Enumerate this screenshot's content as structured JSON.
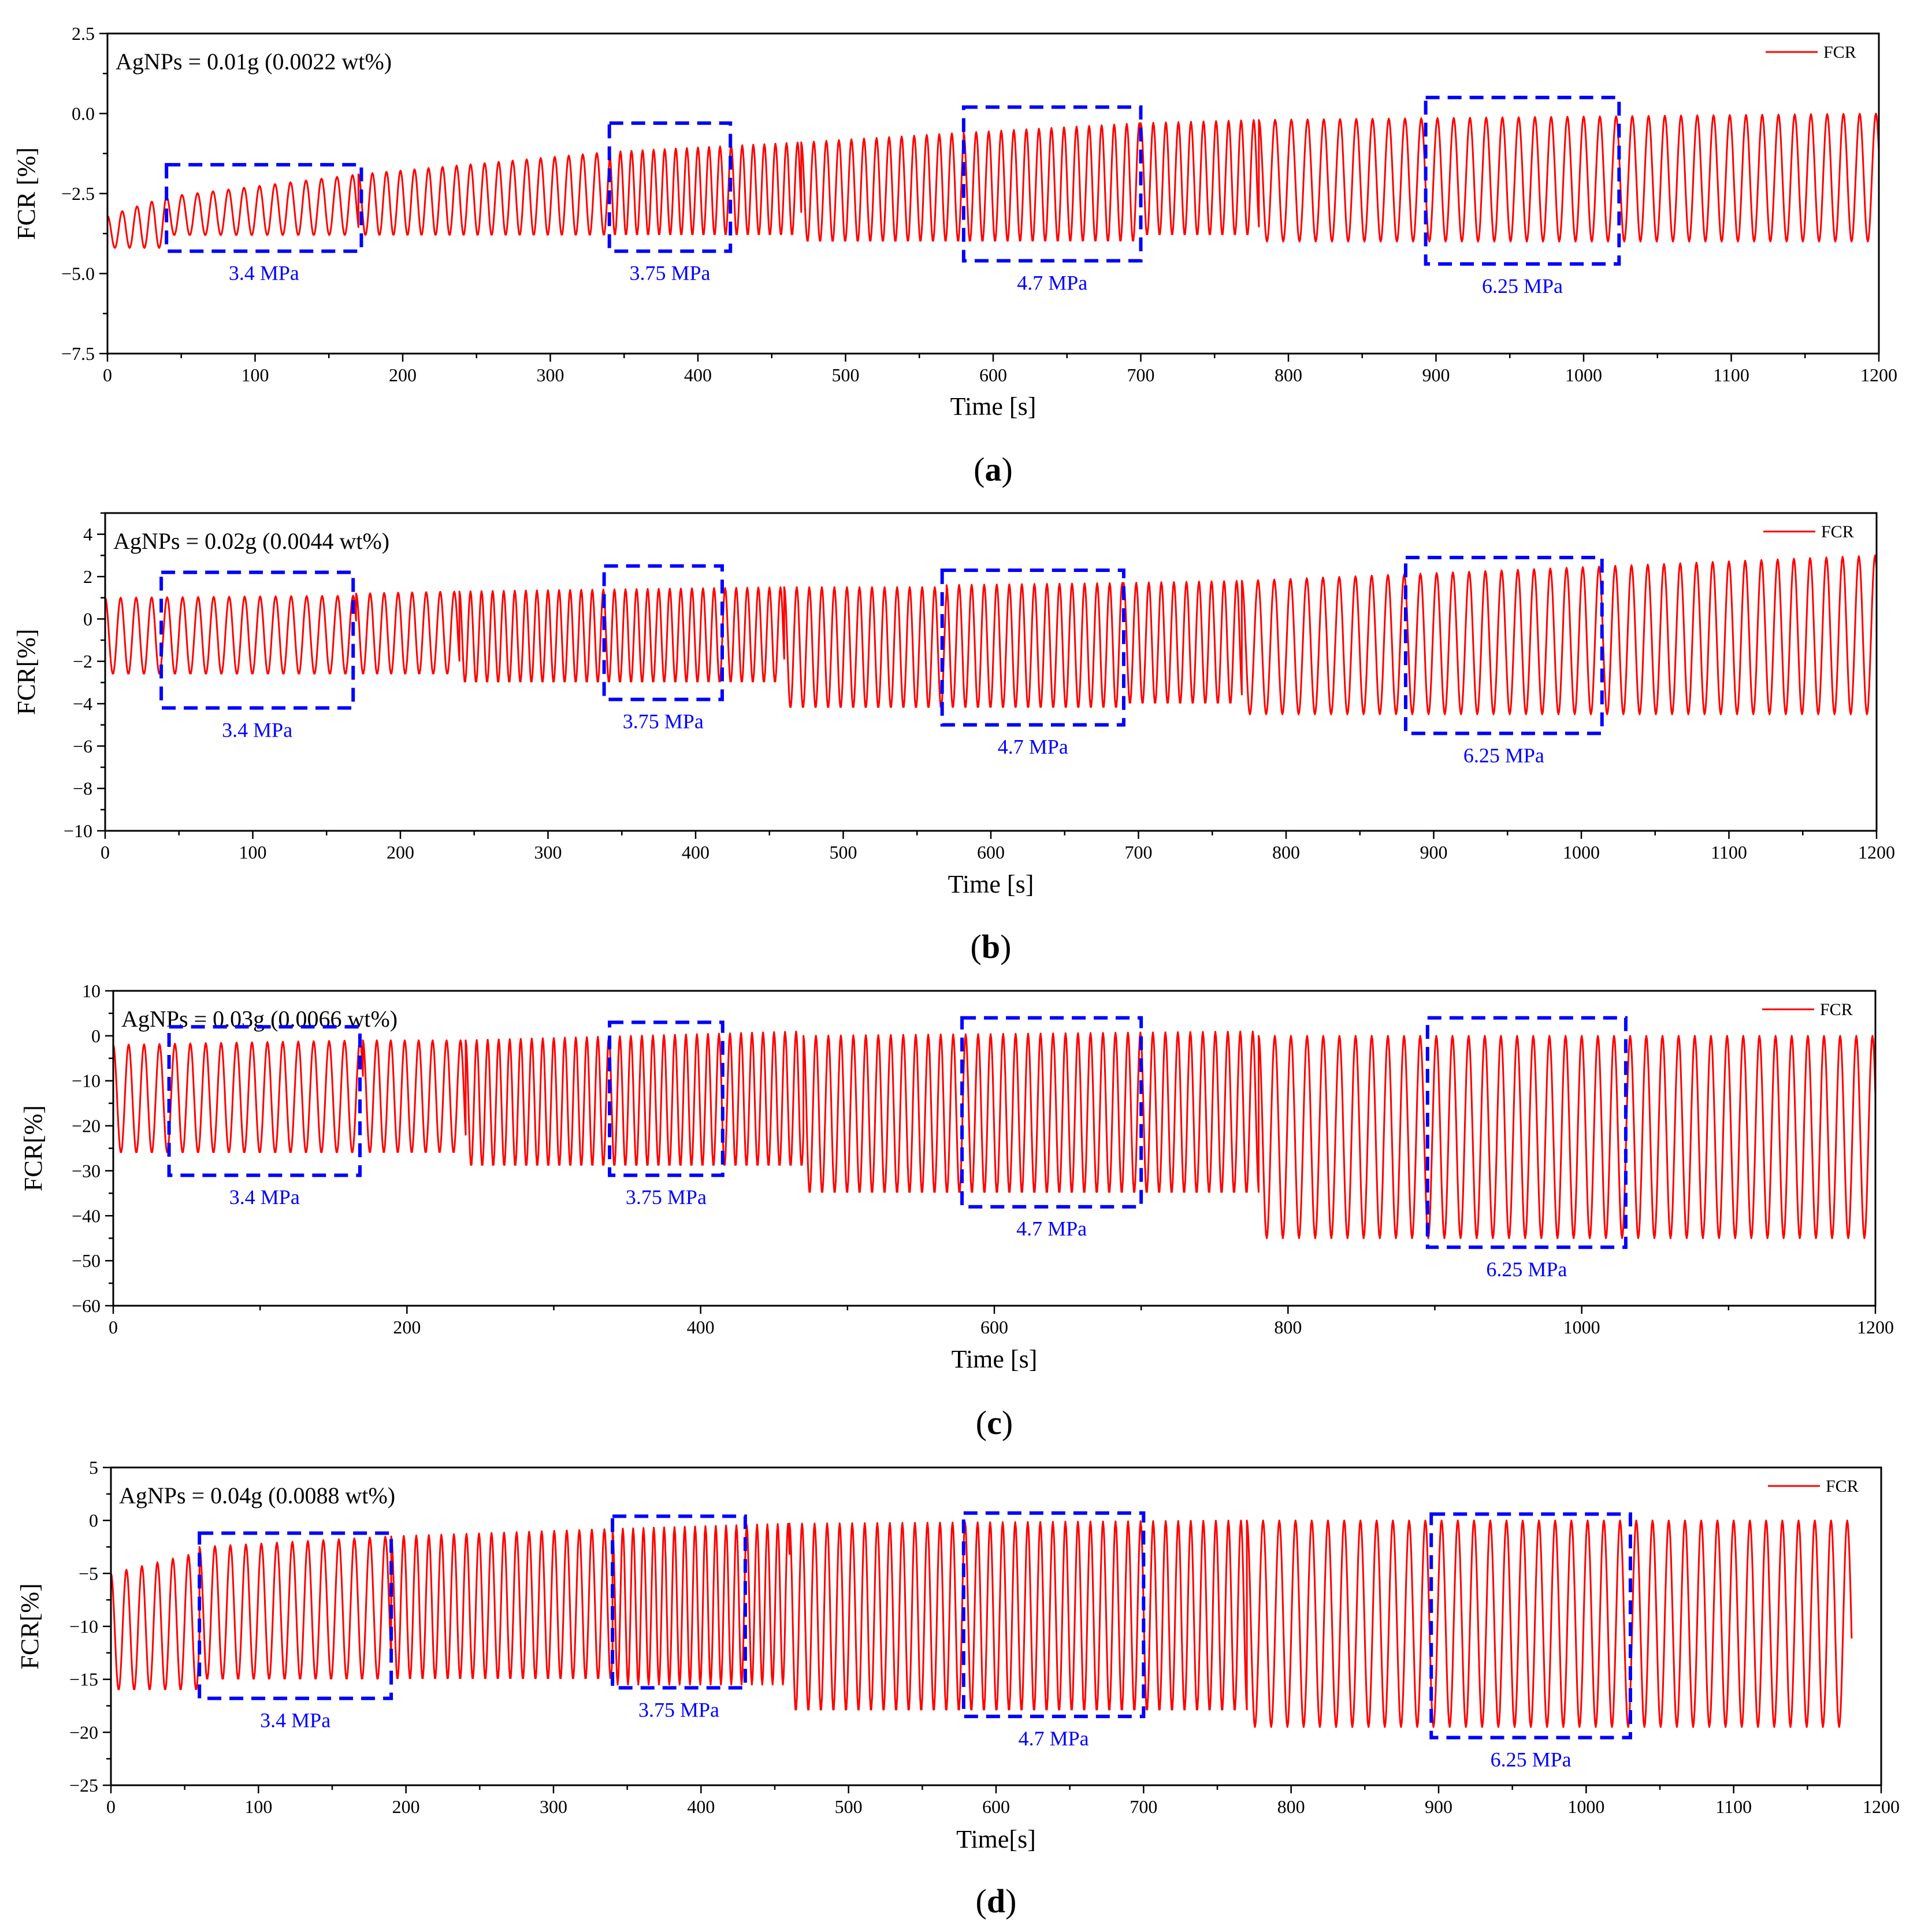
{
  "figure": {
    "series_color": "#ff0000",
    "box_color": "#0000ff"
  },
  "chart_data": [
    {
      "id": "a",
      "type": "line",
      "label": "a",
      "annotation": "AgNPs = 0.01g (0.0022 wt%)",
      "xlabel": "Time [s]",
      "ylabel": "FCR [%]",
      "xlim": [
        0,
        1200
      ],
      "ylim": [
        -7.5,
        2.5
      ],
      "xticks": [
        0,
        100,
        200,
        300,
        400,
        500,
        600,
        700,
        800,
        900,
        1000,
        1100,
        1200
      ],
      "yticks": [
        "2.5",
        "0.0",
        "-2.5",
        "-5.0",
        "-7.5"
      ],
      "legend": "FCR",
      "series": [
        {
          "name": "FCR",
          "description": "periodic loading cycles",
          "segments": [
            {
              "t_start": 0,
              "t_end": 40,
              "period": 10,
              "max_start": -3.2,
              "max_end": -2.6,
              "min": -4.2
            },
            {
              "t_start": 40,
              "t_end": 170,
              "period": 10.5,
              "max_start": -2.6,
              "max_end": -1.9,
              "min": -3.8
            },
            {
              "t_start": 170,
              "t_end": 340,
              "period": 9.5,
              "max_start": -1.9,
              "max_end": -1.2,
              "min": -3.8
            },
            {
              "t_start": 340,
              "t_end": 470,
              "period": 7.5,
              "max_start": -1.2,
              "max_end": -0.9,
              "min": -3.8
            },
            {
              "t_start": 470,
              "t_end": 580,
              "period": 8.5,
              "max_start": -0.9,
              "max_end": -0.6,
              "min": -4.0
            },
            {
              "t_start": 580,
              "t_end": 700,
              "period": 8.5,
              "max_start": -0.6,
              "max_end": -0.3,
              "min": -4.0
            },
            {
              "t_start": 700,
              "t_end": 780,
              "period": 8.5,
              "max_start": -0.3,
              "max_end": -0.2,
              "min": -3.8
            },
            {
              "t_start": 780,
              "t_end": 1200,
              "period": 11,
              "max_start": -0.2,
              "max_end": 0.0,
              "min": -4.0
            }
          ]
        }
      ],
      "regions": [
        {
          "label": "3.4 MPa",
          "t_start": 40,
          "t_end": 172,
          "y_low": -4.3,
          "y_high": -1.6
        },
        {
          "label": "3.75  MPa",
          "t_start": 340,
          "t_end": 422,
          "y_low": -4.3,
          "y_high": -0.3
        },
        {
          "label": "4.7  MPa",
          "t_start": 580,
          "t_end": 700,
          "y_low": -4.6,
          "y_high": 0.2
        },
        {
          "label": "6.25  MPa",
          "t_start": 893,
          "t_end": 1024,
          "y_low": -4.7,
          "y_high": 0.5
        }
      ]
    },
    {
      "id": "b",
      "type": "line",
      "label": "b",
      "annotation": "AgNPs = 0.02g (0.0044 wt%)",
      "xlabel": "Time [s]",
      "ylabel": "FCR[%]",
      "xlim": [
        0,
        1200
      ],
      "ylim": [
        -10,
        5
      ],
      "xticks": [
        0,
        100,
        200,
        300,
        400,
        500,
        600,
        700,
        800,
        900,
        1000,
        1100,
        1200
      ],
      "yticks": [
        "4",
        "2",
        "0",
        "-2",
        "-4",
        "-6",
        "-8",
        "-10"
      ],
      "legend": "FCR",
      "series": [
        {
          "name": "FCR",
          "description": "periodic loading cycles",
          "segments": [
            {
              "t_start": 0,
              "t_end": 170,
              "period": 10.5,
              "max_start": 1.0,
              "max_end": 1.1,
              "min": -2.6
            },
            {
              "t_start": 170,
              "t_end": 240,
              "period": 9.5,
              "max_start": 1.2,
              "max_end": 1.3,
              "min": -2.6
            },
            {
              "t_start": 240,
              "t_end": 460,
              "period": 7.5,
              "max_start": 1.3,
              "max_end": 1.5,
              "min": -3.0
            },
            {
              "t_start": 460,
              "t_end": 570,
              "period": 8.5,
              "max_start": 1.5,
              "max_end": 1.5,
              "min": -4.2
            },
            {
              "t_start": 570,
              "t_end": 690,
              "period": 8.5,
              "max_start": 1.6,
              "max_end": 1.7,
              "min": -4.2
            },
            {
              "t_start": 690,
              "t_end": 770,
              "period": 8.5,
              "max_start": 1.7,
              "max_end": 1.8,
              "min": -4.0
            },
            {
              "t_start": 770,
              "t_end": 1200,
              "period": 11,
              "max_start": 1.8,
              "max_end": 3.0,
              "min": -4.5
            }
          ]
        }
      ],
      "regions": [
        {
          "label": "3.4 MPa",
          "t_start": 38,
          "t_end": 168,
          "y_low": -4.2,
          "y_high": 2.2
        },
        {
          "label": "3.75 MPa",
          "t_start": 338,
          "t_end": 418,
          "y_low": -3.8,
          "y_high": 2.5
        },
        {
          "label": "4.7 MPa",
          "t_start": 567,
          "t_end": 690,
          "y_low": -5.0,
          "y_high": 2.3
        },
        {
          "label": "6.25 MPa",
          "t_start": 881,
          "t_end": 1014,
          "y_low": -5.4,
          "y_high": 2.9
        }
      ]
    },
    {
      "id": "c",
      "type": "line",
      "label": "c",
      "annotation": "AgNPs = 0.03g (0.0066 wt%)",
      "xlabel": "Time [s]",
      "ylabel": "FCR[%]",
      "xlim": [
        0,
        1200
      ],
      "ylim": [
        -60,
        10
      ],
      "xticks": [
        0,
        200,
        400,
        600,
        800,
        1000,
        1200
      ],
      "yticks": [
        "10",
        "0",
        "-10",
        "-20",
        "-30",
        "-40",
        "-50",
        "-60"
      ],
      "legend": "FCR",
      "series": [
        {
          "name": "FCR",
          "description": "periodic loading cycles",
          "segments": [
            {
              "t_start": 0,
              "t_end": 170,
              "period": 10.5,
              "max_start": -2,
              "max_end": -1,
              "min": -26
            },
            {
              "t_start": 170,
              "t_end": 240,
              "period": 9.5,
              "max_start": -1,
              "max_end": -1,
              "min": -26
            },
            {
              "t_start": 240,
              "t_end": 470,
              "period": 7.5,
              "max_start": -1,
              "max_end": 1,
              "min": -29
            },
            {
              "t_start": 470,
              "t_end": 780,
              "period": 8.5,
              "max_start": 0,
              "max_end": 1,
              "min": -35
            },
            {
              "t_start": 780,
              "t_end": 1200,
              "period": 11,
              "max_start": 0,
              "max_end": 0,
              "min": -45
            }
          ]
        }
      ],
      "regions": [
        {
          "label": "3.4 MPa",
          "t_start": 38,
          "t_end": 168,
          "y_low": -31,
          "y_high": 2
        },
        {
          "label": "3.75  MPa",
          "t_start": 338,
          "t_end": 415,
          "y_low": -31,
          "y_high": 3
        },
        {
          "label": "4.7  MPa",
          "t_start": 578,
          "t_end": 700,
          "y_low": -38,
          "y_high": 4
        },
        {
          "label": "6.25  MPa",
          "t_start": 895,
          "t_end": 1030,
          "y_low": -47,
          "y_high": 4
        }
      ]
    },
    {
      "id": "d",
      "type": "line",
      "label": "d",
      "annotation": "AgNPs = 0.04g (0.0088 wt%)",
      "xlabel": "Time[s]",
      "ylabel": "FCR[%]",
      "xlim": [
        0,
        1200
      ],
      "ylim": [
        -25,
        5
      ],
      "xticks": [
        0,
        100,
        200,
        300,
        400,
        500,
        600,
        700,
        800,
        900,
        1000,
        1100,
        1200
      ],
      "yticks": [
        "5",
        "0",
        "-5",
        "-10",
        "-15",
        "-20",
        "-25"
      ],
      "legend": "FCR",
      "series": [
        {
          "name": "FCR",
          "description": "periodic loading cycles",
          "segments": [
            {
              "t_start": 0,
              "t_end": 60,
              "period": 10.5,
              "max_start": -5,
              "max_end": -3,
              "min": -16
            },
            {
              "t_start": 60,
              "t_end": 190,
              "period": 10.5,
              "max_start": -2.5,
              "max_end": -1.5,
              "min": -15
            },
            {
              "t_start": 190,
              "t_end": 340,
              "period": 8.5,
              "max_start": -1.5,
              "max_end": -0.8,
              "min": -15
            },
            {
              "t_start": 340,
              "t_end": 460,
              "period": 7,
              "max_start": -0.8,
              "max_end": -0.3,
              "min": -15.5
            },
            {
              "t_start": 460,
              "t_end": 770,
              "period": 8.5,
              "max_start": -0.3,
              "max_end": 0,
              "min": -18
            },
            {
              "t_start": 770,
              "t_end": 1180,
              "period": 11,
              "max_start": 0,
              "max_end": 0,
              "min": -19.5
            }
          ]
        }
      ],
      "regions": [
        {
          "label": "3.4  MPa",
          "t_start": 60,
          "t_end": 190,
          "y_low": -16.8,
          "y_high": -1.2
        },
        {
          "label": "3.75  MPa",
          "t_start": 340,
          "t_end": 430,
          "y_low": -15.8,
          "y_high": 0.4
        },
        {
          "label": "4.7  MPa",
          "t_start": 578,
          "t_end": 700,
          "y_low": -18.5,
          "y_high": 0.7
        },
        {
          "label": "6.25  MPa",
          "t_start": 895,
          "t_end": 1030,
          "y_low": -20.5,
          "y_high": 0.6
        }
      ]
    }
  ]
}
